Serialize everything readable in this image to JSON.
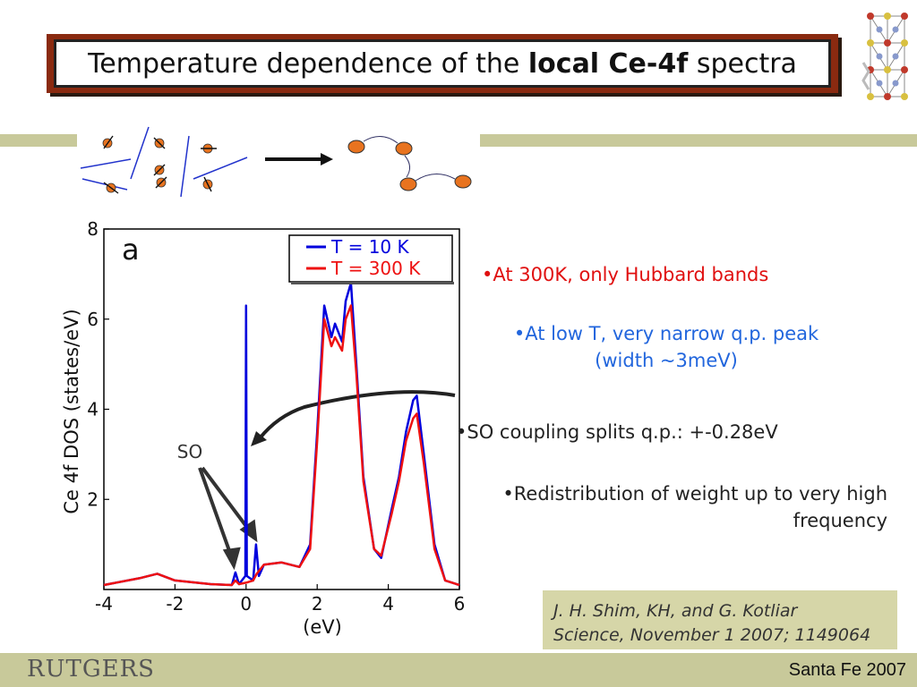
{
  "slide": {
    "title_prefix": "Temperature dependence of the ",
    "title_bold": "local Ce-4f",
    "title_suffix": " spectra"
  },
  "plot": {
    "panel_label": "a",
    "ylabel": "Ce 4f DOS (states/eV)",
    "xlabel": "(eV)",
    "annotation": "SO",
    "xticks": [
      "-4",
      "-2",
      "0",
      "2",
      "4",
      "6"
    ],
    "yticks": [
      "2",
      "4",
      "6",
      "8"
    ],
    "legend": [
      "T = 10 K",
      "T = 300 K"
    ],
    "colors": {
      "t10": "#0000dd",
      "t300": "#ee1111"
    }
  },
  "chart_data": {
    "type": "line",
    "xlim": [
      -4,
      6
    ],
    "ylim": [
      0,
      8
    ],
    "xlabel": "(eV)",
    "ylabel": "Ce 4f DOS (states/eV)",
    "legend_position": "top-right",
    "series": [
      {
        "name": "T = 10 K",
        "x": [
          -4,
          -3,
          -2.5,
          -2,
          -1,
          -0.4,
          -0.3,
          -0.2,
          -0.02,
          0,
          0.02,
          0.2,
          0.28,
          0.36,
          0.5,
          1,
          1.5,
          1.8,
          2,
          2.2,
          2.4,
          2.5,
          2.7,
          2.8,
          2.95,
          3.1,
          3.3,
          3.6,
          3.8,
          4.1,
          4.3,
          4.5,
          4.7,
          4.8,
          5,
          5.3,
          5.6,
          6
        ],
        "y": [
          0.1,
          0.25,
          0.35,
          0.2,
          0.12,
          0.1,
          0.38,
          0.12,
          0.3,
          6.3,
          0.3,
          0.2,
          1.0,
          0.3,
          0.55,
          0.6,
          0.5,
          1.0,
          3.5,
          6.3,
          5.6,
          5.9,
          5.5,
          6.4,
          6.8,
          5.0,
          2.5,
          0.9,
          0.7,
          1.8,
          2.5,
          3.5,
          4.2,
          4.3,
          3.0,
          1.0,
          0.2,
          0.1
        ]
      },
      {
        "name": "T = 300 K",
        "x": [
          -4,
          -3,
          -2.5,
          -2,
          -1,
          -0.4,
          -0.3,
          -0.2,
          0,
          0.2,
          0.3,
          0.5,
          1,
          1.5,
          1.8,
          2,
          2.2,
          2.4,
          2.5,
          2.7,
          2.8,
          2.95,
          3.1,
          3.3,
          3.6,
          3.8,
          4.1,
          4.3,
          4.5,
          4.7,
          4.8,
          5,
          5.3,
          5.6,
          6
        ],
        "y": [
          0.1,
          0.25,
          0.35,
          0.2,
          0.12,
          0.1,
          0.2,
          0.12,
          0.15,
          0.2,
          0.35,
          0.55,
          0.6,
          0.5,
          0.9,
          3.3,
          6.0,
          5.4,
          5.6,
          5.3,
          6.0,
          6.3,
          4.8,
          2.4,
          0.9,
          0.75,
          1.7,
          2.4,
          3.3,
          3.8,
          3.9,
          2.8,
          0.9,
          0.2,
          0.1
        ]
      }
    ]
  },
  "bullets": {
    "b1": "•At 300K, only Hubbard bands",
    "b2_line1": "•At low T, very narrow q.p. peak",
    "b2_line2": "(width ~3meV)",
    "b3": "•SO coupling splits q.p.: +-0.28eV",
    "b4_line1": "•Redistribution of weight up to very high",
    "b4_line2": "frequency"
  },
  "reference": {
    "line1": "J. H. Shim, KH, and G. Kotliar",
    "line2": "Science, November 1 2007; 1149064"
  },
  "footer": {
    "logo_text": "RUTGERS",
    "right_text": "Santa Fe 2007"
  }
}
